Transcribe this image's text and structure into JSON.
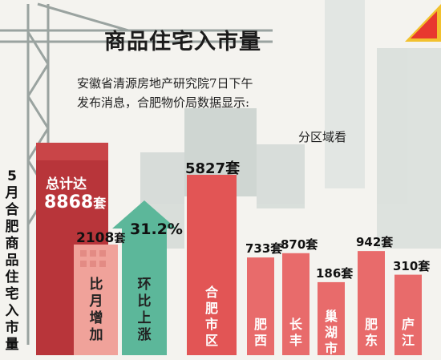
{
  "title": "商品住宅入市量",
  "source_lines": [
    "安徽省清源房地产研究院7日下午",
    "发布消息，合肥物价局数据显示:"
  ],
  "side_label": "5月合肥商品住宅入市量",
  "total": {
    "label": "总计达",
    "value": "8868",
    "unit": "套"
  },
  "mom_increase": {
    "value": "2108",
    "unit": "套",
    "label": "比月增加"
  },
  "mom_rise": {
    "value": "31.2%",
    "label": "环比上涨"
  },
  "region_heading": "分区域看",
  "colors": {
    "red_bar": "#e25555",
    "dark_red": "#b8353a",
    "teal": "#5cb79a",
    "pink": "#f0a29a"
  },
  "chart_data": {
    "type": "bar",
    "title": "商品住宅入市量",
    "ylabel": "",
    "categories": [
      "合肥市区",
      "肥西",
      "长丰",
      "巢湖市",
      "肥东",
      "庐江"
    ],
    "values": [
      5827,
      733,
      870,
      186,
      942,
      310
    ],
    "value_labels": [
      "5827套",
      "733套",
      "870套",
      "186套",
      "942套",
      "310套"
    ],
    "ylim": [
      0,
      5827
    ]
  }
}
